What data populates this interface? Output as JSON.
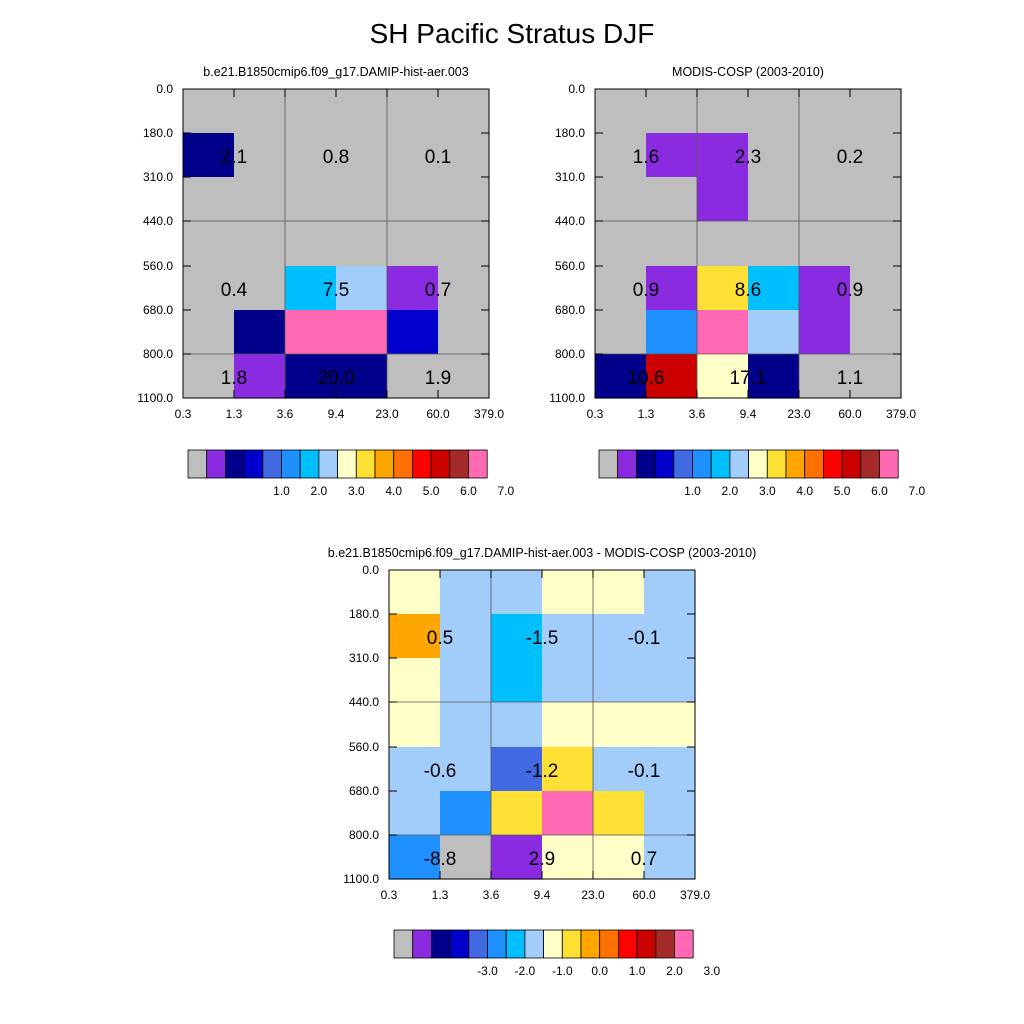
{
  "title": "SH Pacific Stratus DJF",
  "chart_data": [
    {
      "type": "heatmap",
      "title": "b.e21.B1850cmip6.f09_g17.DAMIP-hist-aer.003",
      "x_ticks": [
        "0.3",
        "1.3",
        "3.6",
        "9.4",
        "23.0",
        "60.0",
        "379.0"
      ],
      "y_ticks": [
        "0.0",
        "180.0",
        "310.0",
        "440.0",
        "560.0",
        "680.0",
        "800.0",
        "1100.0"
      ],
      "cells": [
        [
          "#bebebe",
          "#bebebe",
          "#bebebe",
          "#bebebe",
          "#bebebe",
          "#bebebe"
        ],
        [
          "#00008b",
          "#bebebe",
          "#bebebe",
          "#bebebe",
          "#bebebe",
          "#bebebe"
        ],
        [
          "#bebebe",
          "#bebebe",
          "#bebebe",
          "#bebebe",
          "#bebebe",
          "#bebebe"
        ],
        [
          "#bebebe",
          "#bebebe",
          "#bebebe",
          "#bebebe",
          "#bebebe",
          "#bebebe"
        ],
        [
          "#bebebe",
          "#bebebe",
          "#00bfff",
          "#a2cdfa",
          "#8a2be2",
          "#bebebe"
        ],
        [
          "#bebebe",
          "#00008b",
          "#ff69b4",
          "#ff69b4",
          "#0000cd",
          "#bebebe"
        ],
        [
          "#bebebe",
          "#8a2be2",
          "#00008b",
          "#00008b",
          "#bebebe",
          "#bebebe"
        ]
      ],
      "annotations": [
        {
          "col": 1,
          "row": 2,
          "text": "2.1"
        },
        {
          "col": 3,
          "row": 2,
          "text": "0.8"
        },
        {
          "col": 5,
          "row": 2,
          "text": "0.1"
        },
        {
          "col": 1,
          "row": 5,
          "text": "0.4"
        },
        {
          "col": 3,
          "row": 5,
          "text": "7.5"
        },
        {
          "col": 5,
          "row": 5,
          "text": "0.7"
        },
        {
          "col": 1,
          "row": 7,
          "text": "1.8"
        },
        {
          "col": 3,
          "row": 7,
          "text": "20.0"
        },
        {
          "col": 5,
          "row": 7,
          "text": "1.9"
        }
      ],
      "colorbar": {
        "colors": [
          "#bebebe",
          "#8a2be2",
          "#00008b",
          "#0000cd",
          "#4169e1",
          "#1e90ff",
          "#00bfff",
          "#a2cdfa",
          "#ffffc8",
          "#ffe135",
          "#ffa500",
          "#ff7000",
          "#ff0000",
          "#cd0000",
          "#a52a2a",
          "#ff69b4"
        ],
        "labels": [
          "1.0",
          "2.0",
          "3.0",
          "4.0",
          "5.0",
          "6.0",
          "7.0"
        ]
      }
    },
    {
      "type": "heatmap",
      "title": "MODIS-COSP (2003-2010)",
      "x_ticks": [
        "0.3",
        "1.3",
        "3.6",
        "9.4",
        "23.0",
        "60.0",
        "379.0"
      ],
      "y_ticks": [
        "0.0",
        "180.0",
        "310.0",
        "440.0",
        "560.0",
        "680.0",
        "800.0",
        "1100.0"
      ],
      "cells": [
        [
          "#bebebe",
          "#bebebe",
          "#bebebe",
          "#bebebe",
          "#bebebe",
          "#bebebe"
        ],
        [
          "#bebebe",
          "#8a2be2",
          "#8a2be2",
          "#bebebe",
          "#bebebe",
          "#bebebe"
        ],
        [
          "#bebebe",
          "#bebebe",
          "#8a2be2",
          "#bebebe",
          "#bebebe",
          "#bebebe"
        ],
        [
          "#bebebe",
          "#bebebe",
          "#bebebe",
          "#bebebe",
          "#bebebe",
          "#bebebe"
        ],
        [
          "#bebebe",
          "#8a2be2",
          "#ffe135",
          "#00bfff",
          "#8a2be2",
          "#bebebe"
        ],
        [
          "#bebebe",
          "#1e90ff",
          "#ff69b4",
          "#a2cdfa",
          "#8a2be2",
          "#bebebe"
        ],
        [
          "#00008b",
          "#cd0000",
          "#ffffc8",
          "#00008b",
          "#bebebe",
          "#bebebe"
        ]
      ],
      "annotations": [
        {
          "col": 1,
          "row": 2,
          "text": "1.6"
        },
        {
          "col": 3,
          "row": 2,
          "text": "2.3"
        },
        {
          "col": 5,
          "row": 2,
          "text": "0.2"
        },
        {
          "col": 1,
          "row": 5,
          "text": "0.9"
        },
        {
          "col": 3,
          "row": 5,
          "text": "8.6"
        },
        {
          "col": 5,
          "row": 5,
          "text": "0.9"
        },
        {
          "col": 1,
          "row": 7,
          "text": "10.6"
        },
        {
          "col": 3,
          "row": 7,
          "text": "17.1"
        },
        {
          "col": 5,
          "row": 7,
          "text": "1.1"
        }
      ],
      "colorbar": {
        "colors": [
          "#bebebe",
          "#8a2be2",
          "#00008b",
          "#0000cd",
          "#4169e1",
          "#1e90ff",
          "#00bfff",
          "#a2cdfa",
          "#ffffc8",
          "#ffe135",
          "#ffa500",
          "#ff7000",
          "#ff0000",
          "#cd0000",
          "#a52a2a",
          "#ff69b4"
        ],
        "labels": [
          "1.0",
          "2.0",
          "3.0",
          "4.0",
          "5.0",
          "6.0",
          "7.0"
        ]
      }
    },
    {
      "type": "heatmap",
      "title": "b.e21.B1850cmip6.f09_g17.DAMIP-hist-aer.003 - MODIS-COSP (2003-2010)",
      "x_ticks": [
        "0.3",
        "1.3",
        "3.6",
        "9.4",
        "23.0",
        "60.0",
        "379.0"
      ],
      "y_ticks": [
        "0.0",
        "180.0",
        "310.0",
        "440.0",
        "560.0",
        "680.0",
        "800.0",
        "1100.0"
      ],
      "cells": [
        [
          "#ffffc8",
          "#a2cdfa",
          "#a2cdfa",
          "#ffffc8",
          "#ffffc8",
          "#a2cdfa"
        ],
        [
          "#ffa500",
          "#a2cdfa",
          "#00bfff",
          "#a2cdfa",
          "#a2cdfa",
          "#a2cdfa"
        ],
        [
          "#ffffc8",
          "#a2cdfa",
          "#00bfff",
          "#a2cdfa",
          "#a2cdfa",
          "#a2cdfa"
        ],
        [
          "#ffffc8",
          "#a2cdfa",
          "#a2cdfa",
          "#ffffc8",
          "#ffffc8",
          "#ffffc8"
        ],
        [
          "#a2cdfa",
          "#a2cdfa",
          "#4169e1",
          "#ffe135",
          "#a2cdfa",
          "#a2cdfa"
        ],
        [
          "#a2cdfa",
          "#1e90ff",
          "#ffe135",
          "#ff69b4",
          "#ffe135",
          "#a2cdfa"
        ],
        [
          "#1e90ff",
          "#bebebe",
          "#8a2be2",
          "#ffffc8",
          "#ffffc8",
          "#a2cdfa"
        ]
      ],
      "annotations": [
        {
          "col": 1,
          "row": 2,
          "text": "0.5"
        },
        {
          "col": 3,
          "row": 2,
          "text": "-1.5"
        },
        {
          "col": 5,
          "row": 2,
          "text": "-0.1"
        },
        {
          "col": 1,
          "row": 5,
          "text": "-0.6"
        },
        {
          "col": 3,
          "row": 5,
          "text": "-1.2"
        },
        {
          "col": 5,
          "row": 5,
          "text": "-0.1"
        },
        {
          "col": 1,
          "row": 7,
          "text": "-8.8"
        },
        {
          "col": 3,
          "row": 7,
          "text": "2.9"
        },
        {
          "col": 5,
          "row": 7,
          "text": "0.7"
        }
      ],
      "colorbar": {
        "colors": [
          "#bebebe",
          "#8a2be2",
          "#00008b",
          "#0000cd",
          "#4169e1",
          "#1e90ff",
          "#00bfff",
          "#a2cdfa",
          "#ffffc8",
          "#ffe135",
          "#ffa500",
          "#ff7000",
          "#ff0000",
          "#cd0000",
          "#a52a2a",
          "#ff69b4"
        ],
        "labels": [
          "-3.0",
          "-2.0",
          "-1.0",
          "0.0",
          "1.0",
          "2.0",
          "3.0"
        ]
      }
    }
  ]
}
